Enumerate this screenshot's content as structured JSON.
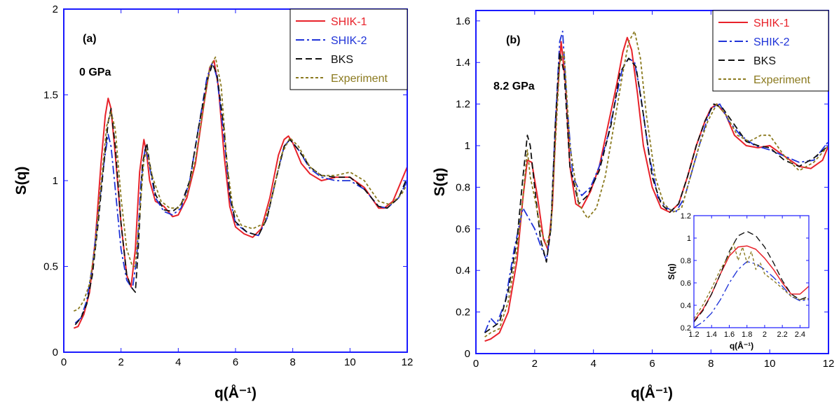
{
  "colors": {
    "frame": "#1a1aff",
    "SHIK-1": "#e8222a",
    "SHIK-2": "#1f33d8",
    "BKS": "#111111",
    "Experiment": "#8b7a1f"
  },
  "chart_data": [
    {
      "type": "line",
      "panel_label": "(a)",
      "annotation": "0 GPa",
      "xlabel": "q(Å⁻¹)",
      "ylabel": "S(q)",
      "xlim": [
        0,
        12
      ],
      "ylim": [
        0,
        2
      ],
      "xticks": [
        0,
        2,
        4,
        6,
        8,
        10,
        12
      ],
      "yticks": [
        0,
        0.5,
        1,
        1.5,
        2
      ],
      "ytick_labels": [
        "0",
        "0.5",
        "1",
        "1.5",
        "2"
      ],
      "legend_position": "top-right",
      "series": [
        {
          "name": "SHIK-1",
          "style": "solid",
          "x": [
            0.35,
            0.5,
            0.7,
            0.9,
            1.1,
            1.3,
            1.45,
            1.55,
            1.65,
            1.8,
            2.0,
            2.2,
            2.35,
            2.5,
            2.65,
            2.8,
            2.9,
            3.0,
            3.2,
            3.5,
            3.8,
            4.0,
            4.3,
            4.6,
            4.9,
            5.1,
            5.25,
            5.4,
            5.6,
            5.8,
            6.0,
            6.3,
            6.6,
            6.9,
            7.2,
            7.5,
            7.7,
            7.85,
            8.0,
            8.3,
            8.6,
            9.0,
            9.5,
            10.0,
            10.5,
            11.0,
            11.2,
            11.5,
            11.8,
            12.0
          ],
          "y": [
            0.14,
            0.15,
            0.22,
            0.35,
            0.65,
            1.1,
            1.38,
            1.48,
            1.42,
            1.15,
            0.75,
            0.45,
            0.38,
            0.6,
            1.05,
            1.24,
            1.15,
            1.0,
            0.88,
            0.85,
            0.79,
            0.8,
            0.9,
            1.1,
            1.45,
            1.66,
            1.7,
            1.55,
            1.15,
            0.85,
            0.73,
            0.69,
            0.67,
            0.72,
            0.9,
            1.15,
            1.24,
            1.26,
            1.22,
            1.1,
            1.04,
            1.0,
            1.02,
            1.02,
            0.96,
            0.84,
            0.84,
            0.88,
            1.0,
            1.08
          ]
        },
        {
          "name": "SHIK-2",
          "style": "dash-dot",
          "x": [
            0.4,
            0.6,
            0.8,
            1.0,
            1.2,
            1.4,
            1.55,
            1.65,
            1.8,
            2.0,
            2.2,
            2.4,
            2.55,
            2.7,
            2.85,
            3.0,
            3.2,
            3.5,
            3.8,
            4.1,
            4.4,
            4.7,
            5.0,
            5.2,
            5.35,
            5.6,
            5.8,
            6.0,
            6.4,
            6.8,
            7.1,
            7.4,
            7.7,
            7.9,
            8.2,
            8.6,
            9.0,
            9.5,
            10.0,
            10.5,
            11.0,
            11.3,
            11.7,
            12.0
          ],
          "y": [
            0.17,
            0.2,
            0.3,
            0.5,
            0.8,
            1.1,
            1.27,
            1.2,
            0.95,
            0.6,
            0.42,
            0.37,
            0.55,
            1.0,
            1.2,
            1.08,
            0.9,
            0.82,
            0.8,
            0.84,
            1.0,
            1.3,
            1.6,
            1.69,
            1.6,
            1.25,
            0.9,
            0.75,
            0.7,
            0.68,
            0.78,
            1.0,
            1.2,
            1.24,
            1.18,
            1.07,
            1.02,
            1.0,
            1.0,
            0.95,
            0.85,
            0.84,
            0.9,
            1.0
          ]
        },
        {
          "name": "BKS",
          "style": "dash",
          "x": [
            0.4,
            0.6,
            0.8,
            1.0,
            1.2,
            1.4,
            1.55,
            1.65,
            1.8,
            2.0,
            2.2,
            2.35,
            2.5,
            2.6,
            2.75,
            2.9,
            3.0,
            3.2,
            3.5,
            3.8,
            4.1,
            4.4,
            4.7,
            5.0,
            5.2,
            5.35,
            5.6,
            5.8,
            6.0,
            6.4,
            6.8,
            7.1,
            7.4,
            7.7,
            7.9,
            8.2,
            8.6,
            9.0,
            9.5,
            10.0,
            10.5,
            11.0,
            11.3,
            11.7,
            12.0
          ],
          "y": [
            0.16,
            0.2,
            0.28,
            0.45,
            0.75,
            1.1,
            1.34,
            1.42,
            1.2,
            0.75,
            0.45,
            0.38,
            0.35,
            0.6,
            1.1,
            1.22,
            1.1,
            0.92,
            0.83,
            0.82,
            0.86,
            1.0,
            1.3,
            1.58,
            1.68,
            1.62,
            1.3,
            0.92,
            0.76,
            0.7,
            0.68,
            0.78,
            1.0,
            1.2,
            1.24,
            1.18,
            1.08,
            1.03,
            1.02,
            1.02,
            0.95,
            0.85,
            0.84,
            0.9,
            1.02
          ]
        },
        {
          "name": "Experiment",
          "style": "short-dash",
          "x": [
            0.35,
            0.5,
            0.7,
            0.9,
            1.1,
            1.3,
            1.5,
            1.65,
            1.8,
            2.0,
            2.2,
            2.4,
            2.5,
            2.65,
            2.8,
            2.9,
            3.1,
            3.4,
            3.7,
            4.0,
            4.3,
            4.6,
            4.9,
            5.1,
            5.3,
            5.5,
            5.7,
            5.9,
            6.2,
            6.6,
            7.0,
            7.3,
            7.6,
            7.9,
            8.2,
            8.6,
            9.0,
            9.5,
            10.0,
            10.5,
            11.0,
            11.4,
            11.8,
            12.0
          ],
          "y": [
            0.24,
            0.25,
            0.3,
            0.4,
            0.62,
            0.98,
            1.32,
            1.4,
            1.3,
            0.9,
            0.6,
            0.5,
            0.5,
            0.8,
            1.12,
            1.18,
            1.02,
            0.88,
            0.84,
            0.84,
            0.92,
            1.12,
            1.45,
            1.66,
            1.72,
            1.55,
            1.1,
            0.85,
            0.74,
            0.72,
            0.75,
            0.92,
            1.15,
            1.25,
            1.2,
            1.08,
            1.03,
            1.03,
            1.05,
            1.0,
            0.88,
            0.86,
            0.92,
            0.98
          ]
        }
      ]
    },
    {
      "type": "line",
      "panel_label": "(b)",
      "annotation": "8.2 GPa",
      "xlabel": "q(Å⁻¹)",
      "ylabel": "S(q)",
      "xlim": [
        0,
        12
      ],
      "ylim": [
        0,
        1.65
      ],
      "xticks": [
        0,
        2,
        4,
        6,
        8,
        10,
        12
      ],
      "yticks": [
        0,
        0.2,
        0.4,
        0.6,
        0.8,
        1,
        1.2,
        1.4,
        1.6
      ],
      "ytick_labels": [
        "0",
        "0.2",
        "0.4",
        "0.6",
        "0.8",
        "1",
        "1.2",
        "1.4",
        "1.6"
      ],
      "legend_position": "top-right",
      "series": [
        {
          "name": "SHIK-1",
          "style": "solid",
          "x": [
            0.3,
            0.5,
            0.8,
            1.1,
            1.4,
            1.6,
            1.75,
            1.9,
            2.1,
            2.3,
            2.45,
            2.6,
            2.75,
            2.9,
            3.05,
            3.2,
            3.4,
            3.6,
            3.9,
            4.2,
            4.5,
            4.8,
            5.0,
            5.15,
            5.3,
            5.5,
            5.7,
            6.0,
            6.3,
            6.6,
            6.9,
            7.2,
            7.5,
            7.8,
            8.0,
            8.2,
            8.5,
            8.8,
            9.2,
            9.6,
            10.0,
            10.5,
            11.0,
            11.4,
            11.8,
            12.0
          ],
          "y": [
            0.06,
            0.07,
            0.1,
            0.2,
            0.45,
            0.75,
            0.93,
            0.92,
            0.75,
            0.55,
            0.5,
            0.7,
            1.2,
            1.5,
            1.3,
            0.9,
            0.72,
            0.7,
            0.78,
            0.9,
            1.1,
            1.3,
            1.45,
            1.52,
            1.46,
            1.25,
            1.0,
            0.8,
            0.7,
            0.68,
            0.72,
            0.85,
            1.0,
            1.12,
            1.18,
            1.2,
            1.15,
            1.05,
            1.0,
            0.99,
            1.0,
            0.95,
            0.9,
            0.89,
            0.93,
            1.0
          ]
        },
        {
          "name": "SHIK-2",
          "style": "dash-dot",
          "x": [
            0.3,
            0.5,
            0.7,
            1.0,
            1.3,
            1.6,
            1.8,
            2.0,
            2.2,
            2.4,
            2.55,
            2.7,
            2.85,
            2.95,
            3.1,
            3.3,
            3.6,
            3.9,
            4.2,
            4.5,
            4.8,
            5.0,
            5.2,
            5.4,
            5.6,
            5.9,
            6.2,
            6.5,
            6.8,
            7.1,
            7.4,
            7.7,
            8.0,
            8.3,
            8.6,
            9.0,
            9.5,
            10.0,
            10.5,
            11.0,
            11.5,
            12.0
          ],
          "y": [
            0.1,
            0.17,
            0.14,
            0.25,
            0.5,
            0.7,
            0.65,
            0.6,
            0.52,
            0.45,
            0.6,
            1.1,
            1.5,
            1.55,
            1.2,
            0.85,
            0.76,
            0.8,
            0.9,
            1.05,
            1.25,
            1.38,
            1.42,
            1.4,
            1.25,
            0.95,
            0.75,
            0.7,
            0.68,
            0.75,
            0.9,
            1.05,
            1.18,
            1.2,
            1.12,
            1.05,
            1.0,
            0.98,
            0.95,
            0.92,
            0.93,
            1.02
          ]
        },
        {
          "name": "BKS",
          "style": "dash",
          "x": [
            0.3,
            0.5,
            0.8,
            1.1,
            1.4,
            1.6,
            1.75,
            1.85,
            2.0,
            2.2,
            2.4,
            2.55,
            2.7,
            2.85,
            3.0,
            3.2,
            3.5,
            3.8,
            4.2,
            4.6,
            4.9,
            5.2,
            5.45,
            5.7,
            6.0,
            6.3,
            6.6,
            6.9,
            7.2,
            7.5,
            7.8,
            8.1,
            8.4,
            8.8,
            9.2,
            9.6,
            10.0,
            10.5,
            11.0,
            11.5,
            12.0
          ],
          "y": [
            0.1,
            0.12,
            0.15,
            0.3,
            0.55,
            0.85,
            1.05,
            1.0,
            0.8,
            0.55,
            0.44,
            0.6,
            1.1,
            1.45,
            1.35,
            0.9,
            0.72,
            0.76,
            0.88,
            1.1,
            1.35,
            1.42,
            1.38,
            1.15,
            0.85,
            0.72,
            0.68,
            0.72,
            0.85,
            1.0,
            1.12,
            1.2,
            1.18,
            1.1,
            1.02,
            1.0,
            0.99,
            0.93,
            0.9,
            0.94,
            1.0
          ]
        },
        {
          "name": "Experiment",
          "style": "short-dash",
          "x": [
            0.3,
            0.5,
            0.8,
            1.1,
            1.4,
            1.6,
            1.75,
            1.85,
            2.0,
            2.2,
            2.4,
            2.55,
            2.7,
            2.85,
            3.0,
            3.2,
            3.5,
            3.8,
            4.1,
            4.4,
            4.7,
            5.0,
            5.2,
            5.4,
            5.6,
            5.8,
            6.1,
            6.4,
            6.7,
            7.0,
            7.3,
            7.6,
            7.9,
            8.2,
            8.5,
            8.9,
            9.3,
            9.7,
            10.0,
            10.5,
            11.0,
            11.5,
            12.0
          ],
          "y": [
            0.08,
            0.1,
            0.12,
            0.25,
            0.5,
            0.75,
            0.98,
            0.85,
            0.75,
            0.6,
            0.52,
            0.6,
            1.0,
            1.4,
            1.45,
            1.0,
            0.72,
            0.65,
            0.7,
            0.85,
            1.1,
            1.35,
            1.5,
            1.55,
            1.42,
            1.15,
            0.85,
            0.72,
            0.68,
            0.7,
            0.85,
            1.0,
            1.12,
            1.2,
            1.15,
            1.05,
            1.02,
            1.05,
            1.05,
            0.95,
            0.88,
            0.92,
            1.0
          ]
        }
      ]
    },
    {
      "type": "line",
      "panel_label": "inset",
      "xlabel": "q(Å⁻¹)",
      "ylabel": "S(q)",
      "xlim": [
        1.2,
        2.5
      ],
      "ylim": [
        0.2,
        1.2
      ],
      "xticks": [
        1.2,
        1.4,
        1.6,
        1.8,
        2.0,
        2.2,
        2.4
      ],
      "xtick_labels": [
        "1.2",
        "1.4",
        "1.6",
        "1.8",
        "2",
        "2.2",
        "2.4"
      ],
      "yticks": [
        0.2,
        0.4,
        0.6,
        0.8,
        1.0,
        1.2
      ],
      "ytick_labels": [
        "0.2",
        "0.4",
        "0.6",
        "0.8",
        "1",
        "1.2"
      ],
      "series": [
        {
          "name": "SHIK-1",
          "style": "solid",
          "x": [
            1.2,
            1.3,
            1.4,
            1.5,
            1.6,
            1.7,
            1.8,
            1.9,
            2.0,
            2.1,
            2.2,
            2.3,
            2.4,
            2.5
          ],
          "y": [
            0.26,
            0.36,
            0.5,
            0.68,
            0.84,
            0.92,
            0.93,
            0.9,
            0.82,
            0.72,
            0.6,
            0.5,
            0.5,
            0.57
          ]
        },
        {
          "name": "SHIK-2",
          "style": "dash-dot",
          "x": [
            1.2,
            1.3,
            1.4,
            1.5,
            1.6,
            1.7,
            1.8,
            1.9,
            2.0,
            2.1,
            2.2,
            2.3,
            2.4,
            2.5
          ],
          "y": [
            0.2,
            0.25,
            0.33,
            0.45,
            0.6,
            0.72,
            0.79,
            0.77,
            0.72,
            0.65,
            0.57,
            0.48,
            0.44,
            0.45
          ]
        },
        {
          "name": "BKS",
          "style": "dash",
          "x": [
            1.2,
            1.3,
            1.4,
            1.5,
            1.6,
            1.7,
            1.8,
            1.9,
            2.0,
            2.1,
            2.2,
            2.3,
            2.4,
            2.5
          ],
          "y": [
            0.25,
            0.35,
            0.5,
            0.68,
            0.88,
            1.02,
            1.06,
            1.02,
            0.92,
            0.78,
            0.62,
            0.5,
            0.45,
            0.48
          ]
        },
        {
          "name": "Experiment",
          "style": "short-dash",
          "x": [
            1.2,
            1.3,
            1.4,
            1.5,
            1.6,
            1.65,
            1.7,
            1.75,
            1.8,
            1.85,
            1.9,
            1.95,
            2.0,
            2.1,
            2.2,
            2.3,
            2.4,
            2.5
          ],
          "y": [
            0.28,
            0.4,
            0.55,
            0.72,
            0.85,
            0.95,
            0.8,
            0.92,
            0.78,
            0.88,
            0.72,
            0.78,
            0.68,
            0.62,
            0.55,
            0.48,
            0.45,
            0.46
          ]
        }
      ]
    }
  ]
}
